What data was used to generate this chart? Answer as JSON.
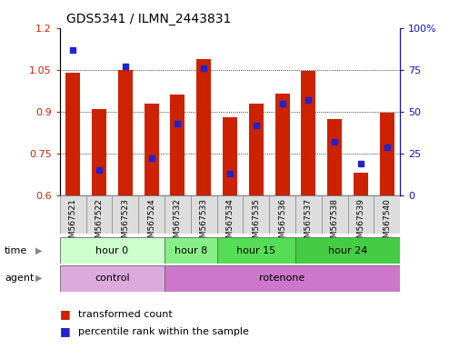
{
  "title": "GDS5341 / ILMN_2443831",
  "samples": [
    "GSM567521",
    "GSM567522",
    "GSM567523",
    "GSM567524",
    "GSM567532",
    "GSM567533",
    "GSM567534",
    "GSM567535",
    "GSM567536",
    "GSM567537",
    "GSM567538",
    "GSM567539",
    "GSM567540"
  ],
  "transformed_count": [
    1.04,
    0.91,
    1.05,
    0.93,
    0.96,
    1.09,
    0.88,
    0.93,
    0.965,
    1.045,
    0.875,
    0.68,
    0.895
  ],
  "percentile_rank": [
    87,
    15,
    77,
    22,
    43,
    76,
    13,
    42,
    55,
    57,
    32,
    19,
    29
  ],
  "bar_color": "#cc2200",
  "dot_color": "#2222cc",
  "ylim_left": [
    0.6,
    1.2
  ],
  "ylim_right": [
    0,
    100
  ],
  "yticks_left": [
    0.6,
    0.75,
    0.9,
    1.05,
    1.2
  ],
  "yticks_right": [
    0,
    25,
    50,
    75,
    100
  ],
  "ytick_labels_right": [
    "0",
    "25",
    "50",
    "75",
    "100%"
  ],
  "grid_values": [
    0.75,
    0.9,
    1.05
  ],
  "time_groups": [
    {
      "label": "hour 0",
      "start": 0,
      "end": 4,
      "color": "#ccffcc"
    },
    {
      "label": "hour 8",
      "start": 4,
      "end": 6,
      "color": "#88ee88"
    },
    {
      "label": "hour 15",
      "start": 6,
      "end": 9,
      "color": "#55dd55"
    },
    {
      "label": "hour 24",
      "start": 9,
      "end": 13,
      "color": "#44cc44"
    }
  ],
  "agent_groups": [
    {
      "label": "control",
      "start": 0,
      "end": 4,
      "color": "#ddaadd"
    },
    {
      "label": "rotenone",
      "start": 4,
      "end": 13,
      "color": "#cc77cc"
    }
  ],
  "legend_items": [
    {
      "label": "transformed count",
      "color": "#cc2200"
    },
    {
      "label": "percentile rank within the sample",
      "color": "#2222cc"
    }
  ],
  "tick_label_bg": "#dddddd",
  "tick_label_edge": "#888888"
}
